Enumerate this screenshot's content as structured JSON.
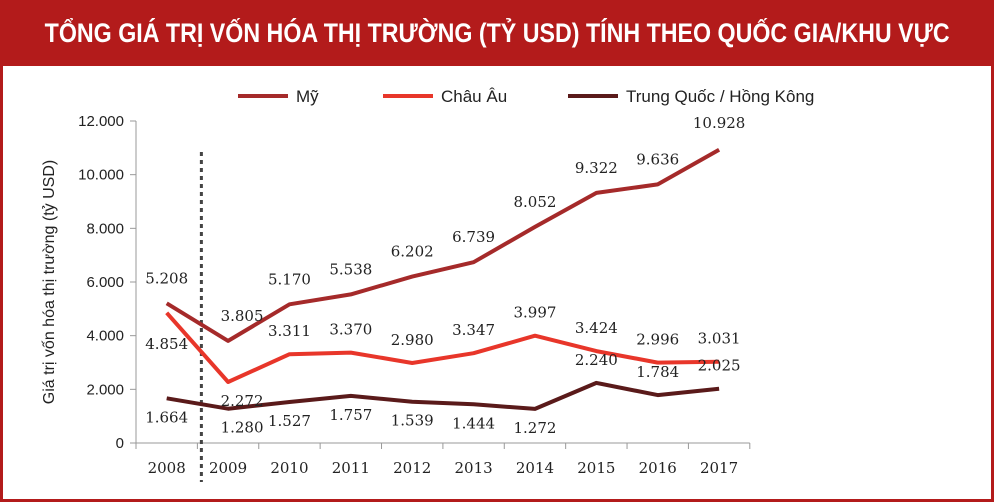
{
  "title": "TỔNG GIÁ TRỊ VỐN HÓA THỊ TRƯỜNG (TỶ USD) TÍNH THEO QUỐC GIA/KHU VỰC",
  "colors": {
    "accent": "#b31b1b",
    "series": [
      "#a52a2a",
      "#e8362a",
      "#5a1a1a"
    ]
  },
  "chart_data": {
    "type": "line",
    "title": "TỔNG GIÁ TRỊ VỐN HÓA THỊ TRƯỜNG (TỶ USD) TÍNH THEO QUỐC GIA/KHU VỰC",
    "xlabel": "",
    "ylabel": "Giá trị vốn hóa thị trường (tỷ USD)",
    "x": [
      "2008",
      "2009",
      "2010",
      "2011",
      "2012",
      "2013",
      "2014",
      "2015",
      "2016",
      "2017"
    ],
    "ylim": [
      0,
      12000
    ],
    "yticks": [
      0,
      2000,
      4000,
      6000,
      8000,
      10000,
      12000
    ],
    "ytick_labels": [
      "0",
      "2.000",
      "4.000",
      "6.000",
      "8.000",
      "10.000",
      "12.000"
    ],
    "grid": false,
    "legend_position": "top",
    "series": [
      {
        "name": "Mỹ",
        "values": [
          5208,
          3805,
          5170,
          5538,
          6202,
          6739,
          8052,
          9322,
          9636,
          10928
        ],
        "labels": [
          "5.208",
          "3.805",
          "5.170",
          "5.538",
          "6.202",
          "6.739",
          "8.052",
          "9.322",
          "9.636",
          "10.928"
        ]
      },
      {
        "name": "Châu Âu",
        "values": [
          4854,
          2272,
          3311,
          3370,
          2980,
          3347,
          3997,
          3424,
          2996,
          3031
        ],
        "labels": [
          "4.854",
          "2.272",
          "3.311",
          "3.370",
          "2.980",
          "3.347",
          "3.997",
          "3.424",
          "2.996",
          "3.031"
        ]
      },
      {
        "name": "Trung Quốc / Hồng Kông",
        "values": [
          1664,
          1280,
          1527,
          1757,
          1539,
          1444,
          1272,
          2240,
          1784,
          2025
        ],
        "labels": [
          "1.664",
          "1.280",
          "1.527",
          "1.757",
          "1.539",
          "1.444",
          "1.272",
          "2.240",
          "1.784",
          "2.025"
        ]
      }
    ],
    "annotations": [
      {
        "type": "vertical-dashed-line",
        "x_between": [
          "2008",
          "2009"
        ]
      }
    ]
  }
}
